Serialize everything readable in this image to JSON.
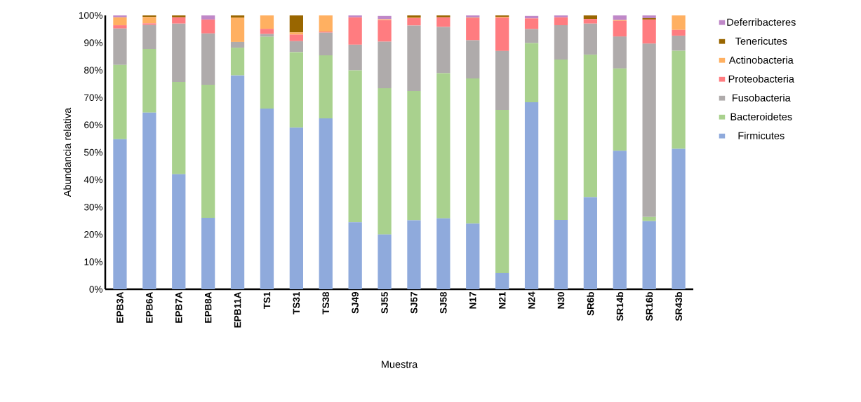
{
  "chart_data": {
    "type": "bar",
    "stacked": true,
    "xlabel": "Muestra",
    "ylabel": "Abundancia relativa",
    "legend": "right",
    "categories": [
      "EPB3A",
      "EPB6A",
      "EPB7A",
      "EPB8A",
      "EPB11A",
      "TS1",
      "TS31",
      "TS38",
      "SJ49",
      "SJ55",
      "SJ57",
      "SJ58",
      "N17",
      "N21",
      "N24",
      "N30",
      "SR6b",
      "SR14b",
      "SR16b",
      "SR43b"
    ],
    "ylim": [
      0,
      100
    ],
    "yticks": [
      {
        "value": 0,
        "label": "0%"
      },
      {
        "value": 10,
        "label": "10%"
      },
      {
        "value": 20,
        "label": "20%"
      },
      {
        "value": 30,
        "label": "30%"
      },
      {
        "value": 40,
        "label": "40%"
      },
      {
        "value": 50,
        "label": "50%"
      },
      {
        "value": 60,
        "label": "60%"
      },
      {
        "value": 70,
        "label": "70%"
      },
      {
        "value": 80,
        "label": "80%"
      },
      {
        "value": 90,
        "label": "90%"
      },
      {
        "value": 100,
        "label": "100%"
      }
    ],
    "series": [
      {
        "name": "Firmicutes",
        "color": "#8faadc",
        "values": [
          54.8,
          64.5,
          42,
          26.1,
          78.1,
          66,
          59,
          62.4,
          24.5,
          20,
          25.2,
          25.9,
          24,
          5.9,
          68.3,
          25.3,
          33.6,
          50.6,
          24.9,
          51.3
        ]
      },
      {
        "name": "Bacteroidetes",
        "color": "#a9d18e",
        "values": [
          27.1,
          23.2,
          33.7,
          48.6,
          10.1,
          26.2,
          27.6,
          23,
          55.4,
          53.4,
          47.2,
          53,
          53,
          59.6,
          21.6,
          58.6,
          52.1,
          30,
          1.5,
          35.8
        ]
      },
      {
        "name": "Fusobacteria",
        "color": "#afabab",
        "values": [
          13.3,
          8.8,
          21.3,
          18.7,
          2.1,
          1,
          4,
          8.3,
          9.4,
          17,
          23.9,
          16.9,
          13.9,
          21.5,
          5.1,
          12.5,
          11.3,
          11.7,
          63.3,
          5.5
        ]
      },
      {
        "name": "Proteobacteria",
        "color": "#ff7c80",
        "values": [
          1.2,
          0.6,
          2.3,
          5.1,
          0,
          1.9,
          2.4,
          0.4,
          10,
          7.9,
          2.7,
          3.5,
          8.1,
          12.2,
          3.9,
          2.9,
          1.7,
          5.7,
          8.8,
          2.1
        ]
      },
      {
        "name": "Actinobacteria",
        "color": "#ffb061",
        "values": [
          2.9,
          2.3,
          0,
          0,
          8.9,
          4.9,
          0.8,
          5.9,
          0,
          0.3,
          0.2,
          0,
          0.2,
          0.3,
          null,
          0,
          0,
          0.3,
          0,
          5.3
        ]
      },
      {
        "name": "Tenericutes",
        "color": "#996600",
        "values": [
          0,
          0.6,
          0.7,
          0,
          0.8,
          0,
          6.2,
          0,
          0,
          null,
          0.8,
          0.7,
          0,
          0.5,
          0,
          0,
          1.3,
          0,
          0.5,
          0
        ]
      },
      {
        "name": "Deferribacteres",
        "color": "#bf88c8",
        "values": [
          0.7,
          0,
          0,
          1.5,
          0,
          0,
          0,
          0,
          0.7,
          1.2,
          0,
          0,
          0.8,
          0,
          0.9,
          0.7,
          0,
          1.7,
          1,
          0
        ]
      }
    ]
  }
}
